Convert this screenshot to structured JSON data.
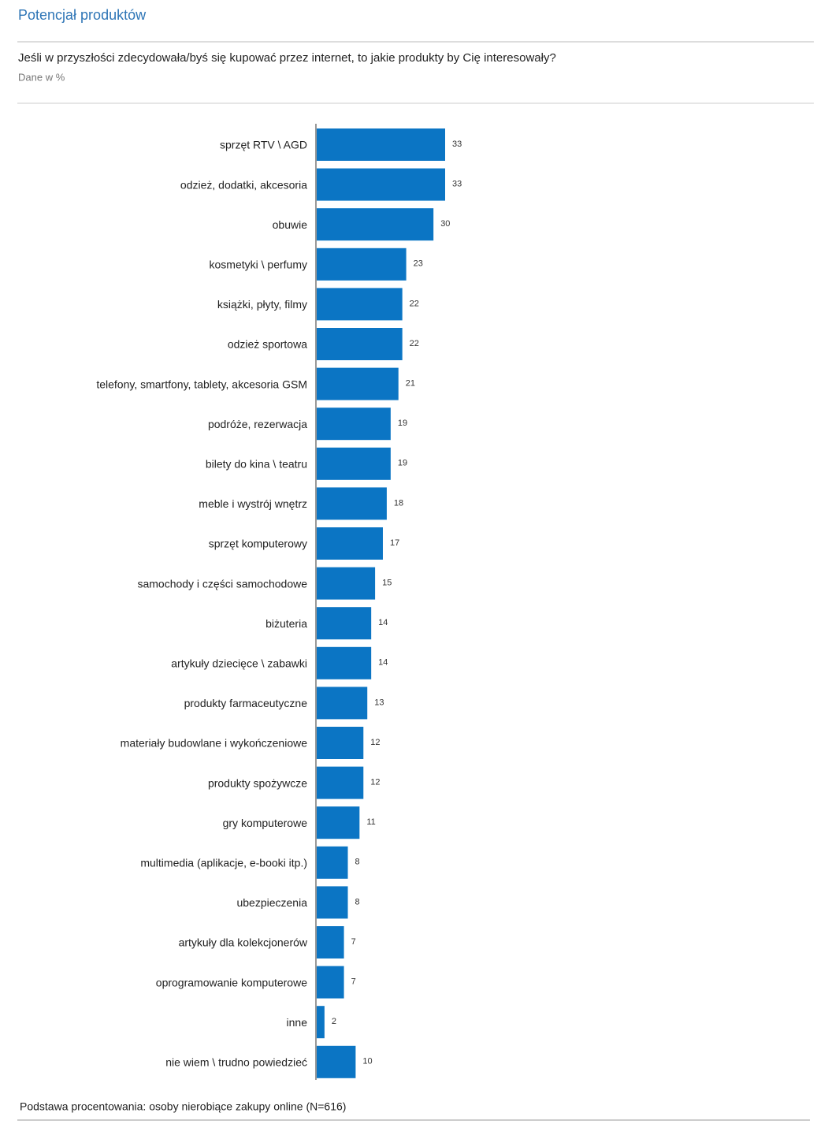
{
  "chart_data": {
    "type": "bar",
    "orientation": "horizontal",
    "title": "Potencjał produktów",
    "question": "Jeśli w przyszłości zdecydowała/byś się kupować przez internet, to jakie produkty by Cię interesowały?",
    "subtitle": "Dane w %",
    "footnote": "Podstawa procentowania: osoby nierobiące zakupy online (N=616)",
    "color": "#0b75c4",
    "categories": [
      "sprzęt RTV \\ AGD",
      "odzież, dodatki, akcesoria",
      "obuwie",
      "kosmetyki \\ perfumy",
      "książki, płyty, filmy",
      "odzież sportowa",
      "telefony, smartfony, tablety, akcesoria GSM",
      "podróże, rezerwacja",
      "bilety do kina \\ teatru",
      "meble i wystrój wnętrz",
      "sprzęt komputerowy",
      "samochody i części samochodowe",
      "biżuteria",
      "artykuły dziecięce \\ zabawki",
      "produkty farmaceutyczne",
      "materiały budowlane i wykończeniowe",
      "produkty spożywcze",
      "gry komputerowe",
      "multimedia (aplikacje, e-booki itp.)",
      "ubezpieczenia",
      "artykuły dla kolekcjonerów",
      "oprogramowanie komputerowe",
      "inne",
      "nie wiem \\ trudno powiedzieć"
    ],
    "values": [
      33,
      33,
      30,
      23,
      22,
      22,
      21,
      19,
      19,
      18,
      17,
      15,
      14,
      14,
      13,
      12,
      12,
      11,
      8,
      8,
      7,
      7,
      2,
      10
    ]
  }
}
